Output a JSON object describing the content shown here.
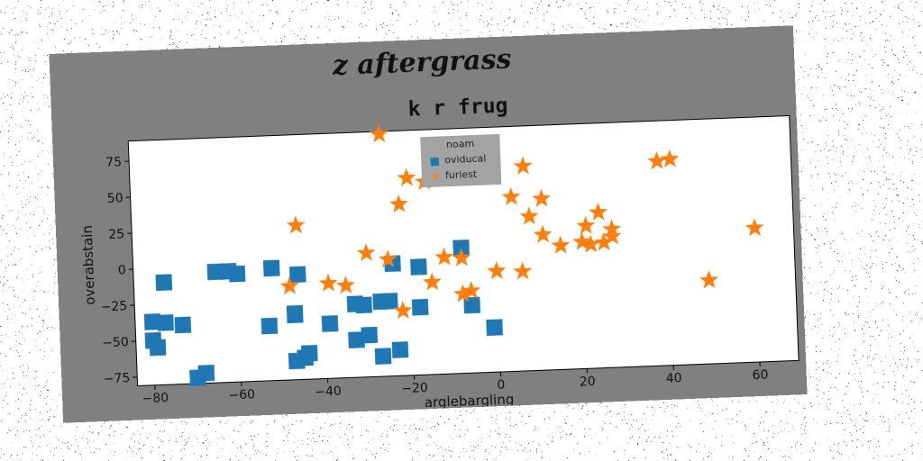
{
  "suptitle": "z aftergrass",
  "chart_data": {
    "type": "scatter",
    "title": "k r frug",
    "xlabel": "arglebargling",
    "ylabel": "overabstain",
    "xlim": [
      -84,
      69
    ],
    "ylim": [
      -81,
      89
    ],
    "xticks": [
      -80,
      -60,
      -40,
      -20,
      0,
      20,
      40,
      60
    ],
    "yticks": [
      -75,
      -50,
      -25,
      0,
      25,
      50,
      75
    ],
    "grid": false,
    "legend": {
      "title": "noam",
      "placement": "top-center"
    },
    "series": [
      {
        "name": "oviducal",
        "marker": "square",
        "color": "#1f77b4",
        "points": [
          [
            -77,
            -10
          ],
          [
            -65,
            -4
          ],
          [
            -62,
            -4
          ],
          [
            -60,
            -6
          ],
          [
            -52,
            -3
          ],
          [
            -46,
            -8
          ],
          [
            -80,
            -37
          ],
          [
            -77,
            -38
          ],
          [
            -73,
            -40
          ],
          [
            -80,
            -50
          ],
          [
            -79,
            -55
          ],
          [
            -70,
            -77
          ],
          [
            -68,
            -74
          ],
          [
            -53,
            -43
          ],
          [
            -47,
            -36
          ],
          [
            -47,
            -35
          ],
          [
            -39,
            -43
          ],
          [
            -47,
            -68
          ],
          [
            -45,
            -66
          ],
          [
            -44,
            -63
          ],
          [
            -33,
            -30
          ],
          [
            -31,
            -31
          ],
          [
            -27,
            -29
          ],
          [
            -25,
            -29
          ],
          [
            -33,
            -55
          ],
          [
            -30,
            -52
          ],
          [
            -27,
            -67
          ],
          [
            -23,
            -63
          ],
          [
            -24,
            -3
          ],
          [
            -18,
            -6
          ],
          [
            -18,
            -34
          ],
          [
            -8,
            6
          ],
          [
            -6,
            -34
          ],
          [
            -1,
            -50
          ]
        ]
      },
      {
        "name": "furiest",
        "marker": "star",
        "color": "#ff7f0e",
        "points": [
          [
            -26,
            87
          ],
          [
            -10,
            60
          ],
          [
            -20,
            56
          ],
          [
            -16,
            53
          ],
          [
            -22,
            38
          ],
          [
            -46,
            26
          ],
          [
            -30,
            5
          ],
          [
            -25,
            0
          ],
          [
            -48,
            -16
          ],
          [
            -39,
            -15
          ],
          [
            -35,
            -17
          ],
          [
            -15,
            -17
          ],
          [
            -22,
            -36
          ],
          [
            -12,
            0
          ],
          [
            -8,
            -1
          ],
          [
            -8,
            -26
          ],
          [
            -6,
            -24
          ],
          [
            0,
            -11
          ],
          [
            6,
            -12
          ],
          [
            4,
            40
          ],
          [
            7,
            61
          ],
          [
            11,
            38
          ],
          [
            8,
            26
          ],
          [
            11,
            13
          ],
          [
            15,
            5
          ],
          [
            20,
            7
          ],
          [
            21,
            18
          ],
          [
            22,
            5
          ],
          [
            25,
            6
          ],
          [
            27,
            10
          ],
          [
            24,
            27
          ],
          [
            27,
            15
          ],
          [
            38,
            61
          ],
          [
            41,
            62
          ],
          [
            49,
            -23
          ],
          [
            60,
            12
          ]
        ]
      }
    ]
  }
}
